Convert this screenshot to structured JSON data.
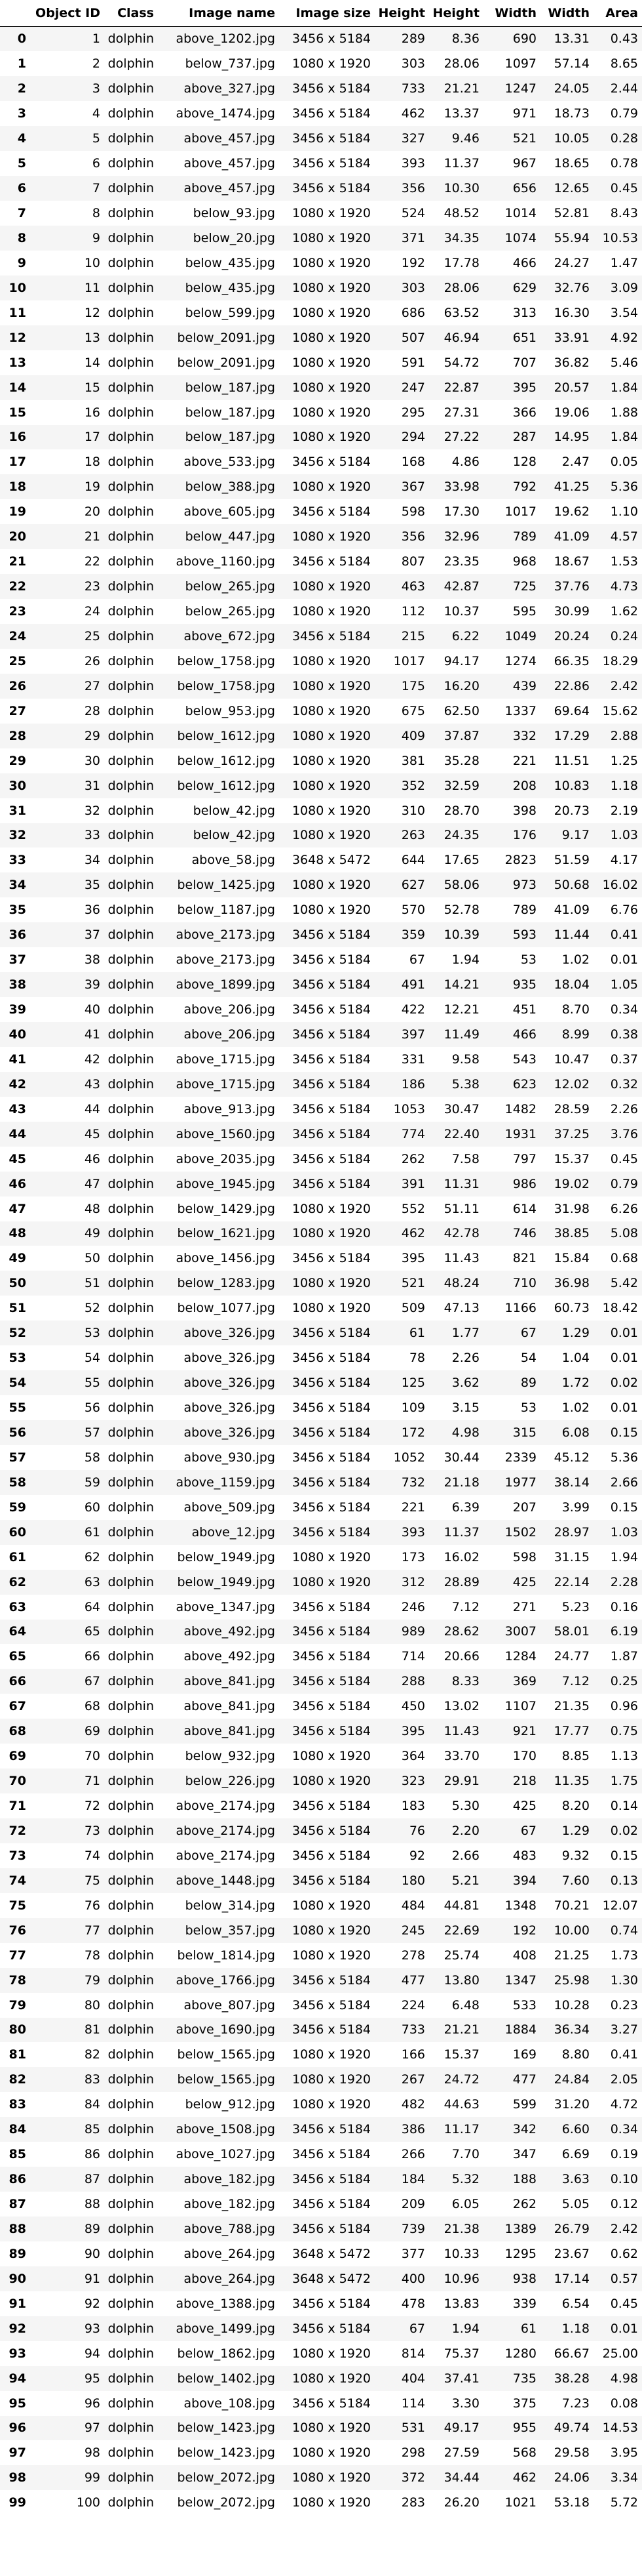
{
  "table": {
    "index_header": "",
    "columns": [
      "Object ID",
      "Class",
      "Image name",
      "Image size",
      "Height",
      "Height",
      "Width",
      "Width",
      "Area"
    ],
    "rows": [
      [
        "0",
        "1",
        "dolphin",
        "above_1202.jpg",
        "3456 x 5184",
        "289",
        "8.36",
        "690",
        "13.31",
        "0.43"
      ],
      [
        "1",
        "2",
        "dolphin",
        "below_737.jpg",
        "1080 x 1920",
        "303",
        "28.06",
        "1097",
        "57.14",
        "8.65"
      ],
      [
        "2",
        "3",
        "dolphin",
        "above_327.jpg",
        "3456 x 5184",
        "733",
        "21.21",
        "1247",
        "24.05",
        "2.44"
      ],
      [
        "3",
        "4",
        "dolphin",
        "above_1474.jpg",
        "3456 x 5184",
        "462",
        "13.37",
        "971",
        "18.73",
        "0.79"
      ],
      [
        "4",
        "5",
        "dolphin",
        "above_457.jpg",
        "3456 x 5184",
        "327",
        "9.46",
        "521",
        "10.05",
        "0.28"
      ],
      [
        "5",
        "6",
        "dolphin",
        "above_457.jpg",
        "3456 x 5184",
        "393",
        "11.37",
        "967",
        "18.65",
        "0.78"
      ],
      [
        "6",
        "7",
        "dolphin",
        "above_457.jpg",
        "3456 x 5184",
        "356",
        "10.30",
        "656",
        "12.65",
        "0.45"
      ],
      [
        "7",
        "8",
        "dolphin",
        "below_93.jpg",
        "1080 x 1920",
        "524",
        "48.52",
        "1014",
        "52.81",
        "8.43"
      ],
      [
        "8",
        "9",
        "dolphin",
        "below_20.jpg",
        "1080 x 1920",
        "371",
        "34.35",
        "1074",
        "55.94",
        "10.53"
      ],
      [
        "9",
        "10",
        "dolphin",
        "below_435.jpg",
        "1080 x 1920",
        "192",
        "17.78",
        "466",
        "24.27",
        "1.47"
      ],
      [
        "10",
        "11",
        "dolphin",
        "below_435.jpg",
        "1080 x 1920",
        "303",
        "28.06",
        "629",
        "32.76",
        "3.09"
      ],
      [
        "11",
        "12",
        "dolphin",
        "below_599.jpg",
        "1080 x 1920",
        "686",
        "63.52",
        "313",
        "16.30",
        "3.54"
      ],
      [
        "12",
        "13",
        "dolphin",
        "below_2091.jpg",
        "1080 x 1920",
        "507",
        "46.94",
        "651",
        "33.91",
        "4.92"
      ],
      [
        "13",
        "14",
        "dolphin",
        "below_2091.jpg",
        "1080 x 1920",
        "591",
        "54.72",
        "707",
        "36.82",
        "5.46"
      ],
      [
        "14",
        "15",
        "dolphin",
        "below_187.jpg",
        "1080 x 1920",
        "247",
        "22.87",
        "395",
        "20.57",
        "1.84"
      ],
      [
        "15",
        "16",
        "dolphin",
        "below_187.jpg",
        "1080 x 1920",
        "295",
        "27.31",
        "366",
        "19.06",
        "1.88"
      ],
      [
        "16",
        "17",
        "dolphin",
        "below_187.jpg",
        "1080 x 1920",
        "294",
        "27.22",
        "287",
        "14.95",
        "1.84"
      ],
      [
        "17",
        "18",
        "dolphin",
        "above_533.jpg",
        "3456 x 5184",
        "168",
        "4.86",
        "128",
        "2.47",
        "0.05"
      ],
      [
        "18",
        "19",
        "dolphin",
        "below_388.jpg",
        "1080 x 1920",
        "367",
        "33.98",
        "792",
        "41.25",
        "5.36"
      ],
      [
        "19",
        "20",
        "dolphin",
        "above_605.jpg",
        "3456 x 5184",
        "598",
        "17.30",
        "1017",
        "19.62",
        "1.10"
      ],
      [
        "20",
        "21",
        "dolphin",
        "below_447.jpg",
        "1080 x 1920",
        "356",
        "32.96",
        "789",
        "41.09",
        "4.57"
      ],
      [
        "21",
        "22",
        "dolphin",
        "above_1160.jpg",
        "3456 x 5184",
        "807",
        "23.35",
        "968",
        "18.67",
        "1.53"
      ],
      [
        "22",
        "23",
        "dolphin",
        "below_265.jpg",
        "1080 x 1920",
        "463",
        "42.87",
        "725",
        "37.76",
        "4.73"
      ],
      [
        "23",
        "24",
        "dolphin",
        "below_265.jpg",
        "1080 x 1920",
        "112",
        "10.37",
        "595",
        "30.99",
        "1.62"
      ],
      [
        "24",
        "25",
        "dolphin",
        "above_672.jpg",
        "3456 x 5184",
        "215",
        "6.22",
        "1049",
        "20.24",
        "0.24"
      ],
      [
        "25",
        "26",
        "dolphin",
        "below_1758.jpg",
        "1080 x 1920",
        "1017",
        "94.17",
        "1274",
        "66.35",
        "18.29"
      ],
      [
        "26",
        "27",
        "dolphin",
        "below_1758.jpg",
        "1080 x 1920",
        "175",
        "16.20",
        "439",
        "22.86",
        "2.42"
      ],
      [
        "27",
        "28",
        "dolphin",
        "below_953.jpg",
        "1080 x 1920",
        "675",
        "62.50",
        "1337",
        "69.64",
        "15.62"
      ],
      [
        "28",
        "29",
        "dolphin",
        "below_1612.jpg",
        "1080 x 1920",
        "409",
        "37.87",
        "332",
        "17.29",
        "2.88"
      ],
      [
        "29",
        "30",
        "dolphin",
        "below_1612.jpg",
        "1080 x 1920",
        "381",
        "35.28",
        "221",
        "11.51",
        "1.25"
      ],
      [
        "30",
        "31",
        "dolphin",
        "below_1612.jpg",
        "1080 x 1920",
        "352",
        "32.59",
        "208",
        "10.83",
        "1.18"
      ],
      [
        "31",
        "32",
        "dolphin",
        "below_42.jpg",
        "1080 x 1920",
        "310",
        "28.70",
        "398",
        "20.73",
        "2.19"
      ],
      [
        "32",
        "33",
        "dolphin",
        "below_42.jpg",
        "1080 x 1920",
        "263",
        "24.35",
        "176",
        "9.17",
        "1.03"
      ],
      [
        "33",
        "34",
        "dolphin",
        "above_58.jpg",
        "3648 x 5472",
        "644",
        "17.65",
        "2823",
        "51.59",
        "4.17"
      ],
      [
        "34",
        "35",
        "dolphin",
        "below_1425.jpg",
        "1080 x 1920",
        "627",
        "58.06",
        "973",
        "50.68",
        "16.02"
      ],
      [
        "35",
        "36",
        "dolphin",
        "below_1187.jpg",
        "1080 x 1920",
        "570",
        "52.78",
        "789",
        "41.09",
        "6.76"
      ],
      [
        "36",
        "37",
        "dolphin",
        "above_2173.jpg",
        "3456 x 5184",
        "359",
        "10.39",
        "593",
        "11.44",
        "0.41"
      ],
      [
        "37",
        "38",
        "dolphin",
        "above_2173.jpg",
        "3456 x 5184",
        "67",
        "1.94",
        "53",
        "1.02",
        "0.01"
      ],
      [
        "38",
        "39",
        "dolphin",
        "above_1899.jpg",
        "3456 x 5184",
        "491",
        "14.21",
        "935",
        "18.04",
        "1.05"
      ],
      [
        "39",
        "40",
        "dolphin",
        "above_206.jpg",
        "3456 x 5184",
        "422",
        "12.21",
        "451",
        "8.70",
        "0.34"
      ],
      [
        "40",
        "41",
        "dolphin",
        "above_206.jpg",
        "3456 x 5184",
        "397",
        "11.49",
        "466",
        "8.99",
        "0.38"
      ],
      [
        "41",
        "42",
        "dolphin",
        "above_1715.jpg",
        "3456 x 5184",
        "331",
        "9.58",
        "543",
        "10.47",
        "0.37"
      ],
      [
        "42",
        "43",
        "dolphin",
        "above_1715.jpg",
        "3456 x 5184",
        "186",
        "5.38",
        "623",
        "12.02",
        "0.32"
      ],
      [
        "43",
        "44",
        "dolphin",
        "above_913.jpg",
        "3456 x 5184",
        "1053",
        "30.47",
        "1482",
        "28.59",
        "2.26"
      ],
      [
        "44",
        "45",
        "dolphin",
        "above_1560.jpg",
        "3456 x 5184",
        "774",
        "22.40",
        "1931",
        "37.25",
        "3.76"
      ],
      [
        "45",
        "46",
        "dolphin",
        "above_2035.jpg",
        "3456 x 5184",
        "262",
        "7.58",
        "797",
        "15.37",
        "0.45"
      ],
      [
        "46",
        "47",
        "dolphin",
        "above_1945.jpg",
        "3456 x 5184",
        "391",
        "11.31",
        "986",
        "19.02",
        "0.79"
      ],
      [
        "47",
        "48",
        "dolphin",
        "below_1429.jpg",
        "1080 x 1920",
        "552",
        "51.11",
        "614",
        "31.98",
        "6.26"
      ],
      [
        "48",
        "49",
        "dolphin",
        "below_1621.jpg",
        "1080 x 1920",
        "462",
        "42.78",
        "746",
        "38.85",
        "5.08"
      ],
      [
        "49",
        "50",
        "dolphin",
        "above_1456.jpg",
        "3456 x 5184",
        "395",
        "11.43",
        "821",
        "15.84",
        "0.68"
      ],
      [
        "50",
        "51",
        "dolphin",
        "below_1283.jpg",
        "1080 x 1920",
        "521",
        "48.24",
        "710",
        "36.98",
        "5.42"
      ],
      [
        "51",
        "52",
        "dolphin",
        "below_1077.jpg",
        "1080 x 1920",
        "509",
        "47.13",
        "1166",
        "60.73",
        "18.42"
      ],
      [
        "52",
        "53",
        "dolphin",
        "above_326.jpg",
        "3456 x 5184",
        "61",
        "1.77",
        "67",
        "1.29",
        "0.01"
      ],
      [
        "53",
        "54",
        "dolphin",
        "above_326.jpg",
        "3456 x 5184",
        "78",
        "2.26",
        "54",
        "1.04",
        "0.01"
      ],
      [
        "54",
        "55",
        "dolphin",
        "above_326.jpg",
        "3456 x 5184",
        "125",
        "3.62",
        "89",
        "1.72",
        "0.02"
      ],
      [
        "55",
        "56",
        "dolphin",
        "above_326.jpg",
        "3456 x 5184",
        "109",
        "3.15",
        "53",
        "1.02",
        "0.01"
      ],
      [
        "56",
        "57",
        "dolphin",
        "above_326.jpg",
        "3456 x 5184",
        "172",
        "4.98",
        "315",
        "6.08",
        "0.15"
      ],
      [
        "57",
        "58",
        "dolphin",
        "above_930.jpg",
        "3456 x 5184",
        "1052",
        "30.44",
        "2339",
        "45.12",
        "5.36"
      ],
      [
        "58",
        "59",
        "dolphin",
        "above_1159.jpg",
        "3456 x 5184",
        "732",
        "21.18",
        "1977",
        "38.14",
        "2.66"
      ],
      [
        "59",
        "60",
        "dolphin",
        "above_509.jpg",
        "3456 x 5184",
        "221",
        "6.39",
        "207",
        "3.99",
        "0.15"
      ],
      [
        "60",
        "61",
        "dolphin",
        "above_12.jpg",
        "3456 x 5184",
        "393",
        "11.37",
        "1502",
        "28.97",
        "1.03"
      ],
      [
        "61",
        "62",
        "dolphin",
        "below_1949.jpg",
        "1080 x 1920",
        "173",
        "16.02",
        "598",
        "31.15",
        "1.94"
      ],
      [
        "62",
        "63",
        "dolphin",
        "below_1949.jpg",
        "1080 x 1920",
        "312",
        "28.89",
        "425",
        "22.14",
        "2.28"
      ],
      [
        "63",
        "64",
        "dolphin",
        "above_1347.jpg",
        "3456 x 5184",
        "246",
        "7.12",
        "271",
        "5.23",
        "0.16"
      ],
      [
        "64",
        "65",
        "dolphin",
        "above_492.jpg",
        "3456 x 5184",
        "989",
        "28.62",
        "3007",
        "58.01",
        "6.19"
      ],
      [
        "65",
        "66",
        "dolphin",
        "above_492.jpg",
        "3456 x 5184",
        "714",
        "20.66",
        "1284",
        "24.77",
        "1.87"
      ],
      [
        "66",
        "67",
        "dolphin",
        "above_841.jpg",
        "3456 x 5184",
        "288",
        "8.33",
        "369",
        "7.12",
        "0.25"
      ],
      [
        "67",
        "68",
        "dolphin",
        "above_841.jpg",
        "3456 x 5184",
        "450",
        "13.02",
        "1107",
        "21.35",
        "0.96"
      ],
      [
        "68",
        "69",
        "dolphin",
        "above_841.jpg",
        "3456 x 5184",
        "395",
        "11.43",
        "921",
        "17.77",
        "0.75"
      ],
      [
        "69",
        "70",
        "dolphin",
        "below_932.jpg",
        "1080 x 1920",
        "364",
        "33.70",
        "170",
        "8.85",
        "1.13"
      ],
      [
        "70",
        "71",
        "dolphin",
        "below_226.jpg",
        "1080 x 1920",
        "323",
        "29.91",
        "218",
        "11.35",
        "1.75"
      ],
      [
        "71",
        "72",
        "dolphin",
        "above_2174.jpg",
        "3456 x 5184",
        "183",
        "5.30",
        "425",
        "8.20",
        "0.14"
      ],
      [
        "72",
        "73",
        "dolphin",
        "above_2174.jpg",
        "3456 x 5184",
        "76",
        "2.20",
        "67",
        "1.29",
        "0.02"
      ],
      [
        "73",
        "74",
        "dolphin",
        "above_2174.jpg",
        "3456 x 5184",
        "92",
        "2.66",
        "483",
        "9.32",
        "0.15"
      ],
      [
        "74",
        "75",
        "dolphin",
        "above_1448.jpg",
        "3456 x 5184",
        "180",
        "5.21",
        "394",
        "7.60",
        "0.13"
      ],
      [
        "75",
        "76",
        "dolphin",
        "below_314.jpg",
        "1080 x 1920",
        "484",
        "44.81",
        "1348",
        "70.21",
        "12.07"
      ],
      [
        "76",
        "77",
        "dolphin",
        "below_357.jpg",
        "1080 x 1920",
        "245",
        "22.69",
        "192",
        "10.00",
        "0.74"
      ],
      [
        "77",
        "78",
        "dolphin",
        "below_1814.jpg",
        "1080 x 1920",
        "278",
        "25.74",
        "408",
        "21.25",
        "1.73"
      ],
      [
        "78",
        "79",
        "dolphin",
        "above_1766.jpg",
        "3456 x 5184",
        "477",
        "13.80",
        "1347",
        "25.98",
        "1.30"
      ],
      [
        "79",
        "80",
        "dolphin",
        "above_807.jpg",
        "3456 x 5184",
        "224",
        "6.48",
        "533",
        "10.28",
        "0.23"
      ],
      [
        "80",
        "81",
        "dolphin",
        "above_1690.jpg",
        "3456 x 5184",
        "733",
        "21.21",
        "1884",
        "36.34",
        "3.27"
      ],
      [
        "81",
        "82",
        "dolphin",
        "below_1565.jpg",
        "1080 x 1920",
        "166",
        "15.37",
        "169",
        "8.80",
        "0.41"
      ],
      [
        "82",
        "83",
        "dolphin",
        "below_1565.jpg",
        "1080 x 1920",
        "267",
        "24.72",
        "477",
        "24.84",
        "2.05"
      ],
      [
        "83",
        "84",
        "dolphin",
        "below_912.jpg",
        "1080 x 1920",
        "482",
        "44.63",
        "599",
        "31.20",
        "4.72"
      ],
      [
        "84",
        "85",
        "dolphin",
        "above_1508.jpg",
        "3456 x 5184",
        "386",
        "11.17",
        "342",
        "6.60",
        "0.34"
      ],
      [
        "85",
        "86",
        "dolphin",
        "above_1027.jpg",
        "3456 x 5184",
        "266",
        "7.70",
        "347",
        "6.69",
        "0.19"
      ],
      [
        "86",
        "87",
        "dolphin",
        "above_182.jpg",
        "3456 x 5184",
        "184",
        "5.32",
        "188",
        "3.63",
        "0.10"
      ],
      [
        "87",
        "88",
        "dolphin",
        "above_182.jpg",
        "3456 x 5184",
        "209",
        "6.05",
        "262",
        "5.05",
        "0.12"
      ],
      [
        "88",
        "89",
        "dolphin",
        "above_788.jpg",
        "3456 x 5184",
        "739",
        "21.38",
        "1389",
        "26.79",
        "2.42"
      ],
      [
        "89",
        "90",
        "dolphin",
        "above_264.jpg",
        "3648 x 5472",
        "377",
        "10.33",
        "1295",
        "23.67",
        "0.62"
      ],
      [
        "90",
        "91",
        "dolphin",
        "above_264.jpg",
        "3648 x 5472",
        "400",
        "10.96",
        "938",
        "17.14",
        "0.57"
      ],
      [
        "91",
        "92",
        "dolphin",
        "above_1388.jpg",
        "3456 x 5184",
        "478",
        "13.83",
        "339",
        "6.54",
        "0.45"
      ],
      [
        "92",
        "93",
        "dolphin",
        "above_1499.jpg",
        "3456 x 5184",
        "67",
        "1.94",
        "61",
        "1.18",
        "0.01"
      ],
      [
        "93",
        "94",
        "dolphin",
        "below_1862.jpg",
        "1080 x 1920",
        "814",
        "75.37",
        "1280",
        "66.67",
        "25.00"
      ],
      [
        "94",
        "95",
        "dolphin",
        "below_1402.jpg",
        "1080 x 1920",
        "404",
        "37.41",
        "735",
        "38.28",
        "4.98"
      ],
      [
        "95",
        "96",
        "dolphin",
        "above_108.jpg",
        "3456 x 5184",
        "114",
        "3.30",
        "375",
        "7.23",
        "0.08"
      ],
      [
        "96",
        "97",
        "dolphin",
        "below_1423.jpg",
        "1080 x 1920",
        "531",
        "49.17",
        "955",
        "49.74",
        "14.53"
      ],
      [
        "97",
        "98",
        "dolphin",
        "below_1423.jpg",
        "1080 x 1920",
        "298",
        "27.59",
        "568",
        "29.58",
        "3.95"
      ],
      [
        "98",
        "99",
        "dolphin",
        "below_2072.jpg",
        "1080 x 1920",
        "372",
        "34.44",
        "462",
        "24.06",
        "3.34"
      ],
      [
        "99",
        "100",
        "dolphin",
        "below_2072.jpg",
        "1080 x 1920",
        "283",
        "26.20",
        "1021",
        "53.18",
        "5.72"
      ]
    ]
  }
}
